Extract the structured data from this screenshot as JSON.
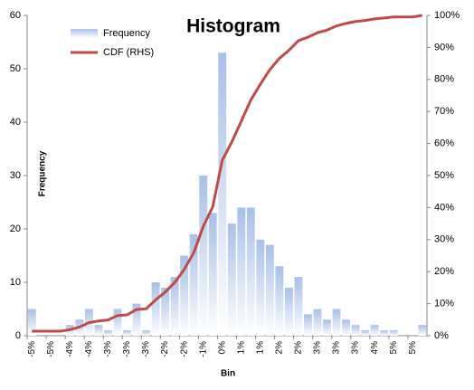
{
  "chart_data": {
    "type": "bar",
    "title": "Histogram",
    "x_label": "Bin",
    "y_label": "Frequency",
    "categories": [
      "-5%",
      null,
      "-5%",
      null,
      "-4%",
      null,
      "-4%",
      null,
      "-3%",
      null,
      "-3%",
      null,
      "-3%",
      null,
      "-2%",
      null,
      "-2%",
      null,
      "-1%",
      null,
      "0%",
      null,
      "1%",
      null,
      "1%",
      null,
      "2%",
      null,
      "2%",
      null,
      "3%",
      null,
      "3%",
      null,
      "3%",
      null,
      "4%",
      null,
      "5%",
      null,
      "5%",
      null
    ],
    "series": [
      {
        "name": "Frequency",
        "type": "bar",
        "color": "#a9c0e8",
        "values": [
          5,
          0,
          0,
          0,
          2,
          3,
          5,
          2,
          1,
          5,
          1,
          6,
          1,
          10,
          9,
          11,
          15,
          19,
          30,
          23,
          53,
          21,
          24,
          24,
          18,
          17,
          13,
          9,
          11,
          4,
          5,
          3,
          5,
          3,
          2,
          1,
          2,
          1,
          1,
          0,
          0,
          2
        ]
      },
      {
        "name": "CDF (RHS)",
        "type": "line",
        "axis": "y2",
        "color": "#be4b48",
        "values": [
          1.4,
          1.4,
          1.4,
          1.4,
          1.9,
          2.7,
          4.1,
          4.6,
          4.9,
          6.3,
          6.5,
          8.2,
          8.4,
          11.2,
          13.6,
          16.6,
          20.7,
          25.9,
          34.1,
          40.3,
          54.8,
          60.5,
          67.0,
          73.6,
          78.5,
          83.1,
          86.6,
          89.1,
          92.1,
          93.2,
          94.6,
          95.4,
          96.7,
          97.5,
          98.1,
          98.4,
          98.9,
          99.2,
          99.5,
          99.5,
          99.5,
          100
        ]
      }
    ],
    "ylim": [
      0,
      60
    ],
    "yticks": [
      0,
      10,
      20,
      30,
      40,
      50,
      60
    ],
    "y2lim": [
      0,
      100
    ],
    "y2ticks": [
      {
        "value": 0,
        "label": "0%"
      },
      {
        "value": 10,
        "label": "10%"
      },
      {
        "value": 20,
        "label": "20%"
      },
      {
        "value": 30,
        "label": "30%"
      },
      {
        "value": 40,
        "label": "40%"
      },
      {
        "value": 50,
        "label": "50%"
      },
      {
        "value": 60,
        "label": "60%"
      },
      {
        "value": 70,
        "label": "70%"
      },
      {
        "value": 80,
        "label": "80%"
      },
      {
        "value": 90,
        "label": "90%"
      },
      {
        "value": 100,
        "label": "100%"
      }
    ],
    "grid": false,
    "legend": "top-left"
  }
}
